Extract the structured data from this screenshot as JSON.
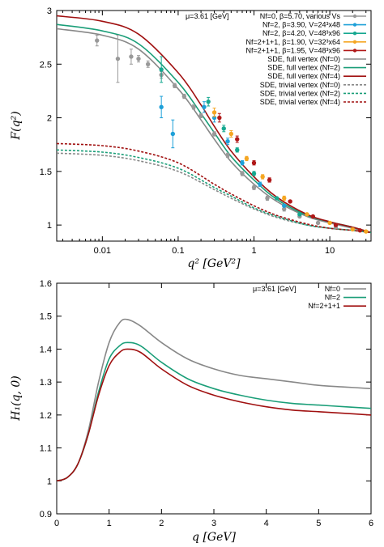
{
  "chart_data": [
    {
      "type": "line",
      "xscale": "log",
      "xlabel": "q² [GeV²]",
      "ylabel": "F(q²)",
      "xlim": [
        0.0025,
        35
      ],
      "ylim": [
        0.85,
        3
      ],
      "xticks": [
        0.01,
        0.1,
        1,
        10
      ],
      "xtick_labels": [
        "0.01",
        "0.1",
        "1",
        "10"
      ],
      "yticks": [
        1,
        1.5,
        2,
        2.5,
        3
      ],
      "ytick_labels": [
        "1",
        "1.5",
        "2",
        "2.5",
        "3"
      ],
      "annotation": "μ=3.61 [GeV]",
      "legend_position": "top-right",
      "lattice": [
        {
          "name": "Nf=0, β=5.70, various Vs",
          "color": "#999999",
          "points": [
            [
              0.0085,
              2.72,
              0.05
            ],
            [
              0.016,
              2.55,
              0.22
            ],
            [
              0.024,
              2.57,
              0.07
            ],
            [
              0.03,
              2.55,
              0.03
            ],
            [
              0.04,
              2.5,
              0.03
            ],
            [
              0.06,
              2.4,
              0.03
            ],
            [
              0.09,
              2.3,
              0.02
            ],
            [
              0.12,
              2.2,
              0.02
            ],
            [
              0.16,
              2.1,
              0.02
            ],
            [
              0.2,
              2.02,
              0.02
            ],
            [
              0.3,
              1.85,
              0.02
            ],
            [
              0.45,
              1.65,
              0.02
            ],
            [
              0.7,
              1.48,
              0.02
            ],
            [
              1.0,
              1.35,
              0.02
            ],
            [
              1.5,
              1.25,
              0.02
            ],
            [
              2.5,
              1.15,
              0.02
            ],
            [
              4.0,
              1.08,
              0.01
            ],
            [
              7.0,
              1.02,
              0.01
            ],
            [
              12.0,
              0.98,
              0.01
            ]
          ]
        },
        {
          "name": "Nf=2, β=3.90, V=24³x48",
          "color": "#1ea0d8",
          "points": [
            [
              0.06,
              2.1,
              0.1
            ],
            [
              0.085,
              1.85,
              0.13
            ],
            [
              0.22,
              2.1,
              0.05
            ],
            [
              0.3,
              2.0,
              0.04
            ],
            [
              0.45,
              1.78,
              0.03
            ],
            [
              0.7,
              1.58,
              0.02
            ],
            [
              1.2,
              1.38,
              0.02
            ],
            [
              2.5,
              1.18,
              0.01
            ]
          ]
        },
        {
          "name": "Nf=2, β=4.20, V=48³x96",
          "color": "#16a890",
          "points": [
            [
              0.06,
              2.45,
              0.12
            ],
            [
              0.25,
              2.15,
              0.04
            ],
            [
              0.4,
              1.9,
              0.03
            ],
            [
              0.6,
              1.7,
              0.02
            ],
            [
              1.0,
              1.48,
              0.02
            ],
            [
              2.0,
              1.25,
              0.01
            ],
            [
              4.0,
              1.1,
              0.01
            ]
          ]
        },
        {
          "name": "Nf=2+1+1, β=1.90, V=32³x64",
          "color": "#f5a623",
          "points": [
            [
              0.3,
              2.05,
              0.04
            ],
            [
              0.5,
              1.85,
              0.03
            ],
            [
              0.8,
              1.62,
              0.02
            ],
            [
              1.3,
              1.45,
              0.02
            ],
            [
              2.5,
              1.25,
              0.02
            ],
            [
              5.0,
              1.1,
              0.01
            ],
            [
              10.0,
              1.02,
              0.01
            ],
            [
              20.0,
              0.96,
              0.01
            ],
            [
              30.0,
              0.94,
              0.01
            ]
          ]
        },
        {
          "name": "Nf=2+1+1, β=1.95, V=48³x96",
          "color": "#b01818",
          "points": [
            [
              0.35,
              2.0,
              0.04
            ],
            [
              0.6,
              1.8,
              0.03
            ],
            [
              1.0,
              1.58,
              0.02
            ],
            [
              1.6,
              1.42,
              0.02
            ],
            [
              3.0,
              1.22,
              0.01
            ],
            [
              6.0,
              1.08,
              0.01
            ],
            [
              12.0,
              1.0,
              0.01
            ],
            [
              25.0,
              0.95,
              0.01
            ]
          ]
        }
      ],
      "series": [
        {
          "name": "SDE, full vertex (Nf=0)",
          "color": "#888888",
          "dash": "",
          "x": [
            0.0025,
            0.01,
            0.03,
            0.1,
            0.2,
            0.3,
            0.5,
            1,
            2,
            5,
            10,
            20,
            35
          ],
          "y": [
            2.83,
            2.77,
            2.64,
            2.27,
            1.98,
            1.8,
            1.59,
            1.38,
            1.22,
            1.08,
            1.02,
            0.97,
            0.93
          ]
        },
        {
          "name": "SDE, full vertex (Nf=2)",
          "color": "#1a9e78",
          "dash": "",
          "x": [
            0.0025,
            0.01,
            0.03,
            0.1,
            0.2,
            0.3,
            0.5,
            1,
            2,
            5,
            10,
            20,
            35
          ],
          "y": [
            2.87,
            2.81,
            2.69,
            2.33,
            2.04,
            1.86,
            1.64,
            1.42,
            1.24,
            1.09,
            1.03,
            0.98,
            0.93
          ]
        },
        {
          "name": "SDE, full vertex (Nf=4)",
          "color": "#a01010",
          "dash": "",
          "x": [
            0.0025,
            0.01,
            0.03,
            0.1,
            0.2,
            0.3,
            0.5,
            1,
            2,
            5,
            10,
            20,
            35
          ],
          "y": [
            2.95,
            2.9,
            2.78,
            2.42,
            2.12,
            1.92,
            1.69,
            1.45,
            1.26,
            1.1,
            1.03,
            0.98,
            0.93
          ]
        },
        {
          "name": "SDE, trivial vertex (Nf=0)",
          "color": "#888888",
          "dash": "3,2",
          "x": [
            0.0025,
            0.01,
            0.03,
            0.1,
            0.3,
            0.5,
            1,
            2,
            5,
            10,
            20,
            35
          ],
          "y": [
            1.67,
            1.65,
            1.6,
            1.5,
            1.33,
            1.25,
            1.15,
            1.07,
            1.0,
            0.97,
            0.95,
            0.93
          ]
        },
        {
          "name": "SDE, trivial vertex (Nf=2)",
          "color": "#1a9e78",
          "dash": "3,2",
          "x": [
            0.0025,
            0.01,
            0.03,
            0.1,
            0.3,
            0.5,
            1,
            2,
            5,
            10,
            20,
            35
          ],
          "y": [
            1.7,
            1.68,
            1.63,
            1.53,
            1.35,
            1.27,
            1.16,
            1.08,
            1.0,
            0.97,
            0.95,
            0.93
          ]
        },
        {
          "name": "SDE, trivial vertex (Nf=4)",
          "color": "#a01010",
          "dash": "3,2",
          "x": [
            0.0025,
            0.01,
            0.03,
            0.1,
            0.3,
            0.5,
            1,
            2,
            5,
            10,
            20,
            35
          ],
          "y": [
            1.76,
            1.74,
            1.69,
            1.58,
            1.38,
            1.29,
            1.18,
            1.09,
            1.01,
            0.97,
            0.95,
            0.93
          ]
        }
      ]
    },
    {
      "type": "line",
      "xscale": "linear",
      "xlabel": "q [GeV]",
      "ylabel": "H₁(q, 0)",
      "xlim": [
        0,
        6
      ],
      "ylim": [
        0.9,
        1.6
      ],
      "xticks": [
        0,
        1,
        2,
        3,
        4,
        5,
        6
      ],
      "xtick_labels": [
        "0",
        "1",
        "2",
        "3",
        "4",
        "5",
        "6"
      ],
      "yticks": [
        0.9,
        1.0,
        1.1,
        1.2,
        1.3,
        1.4,
        1.5,
        1.6
      ],
      "ytick_labels": [
        "0.9",
        "1",
        "1.1",
        "1.2",
        "1.3",
        "1.4",
        "1.5",
        "1.6"
      ],
      "annotation": "μ=3.61 [GeV]",
      "legend_position": "top-right",
      "series": [
        {
          "name": "Nf=0",
          "color": "#888888",
          "x": [
            0,
            0.2,
            0.4,
            0.6,
            0.8,
            1.0,
            1.2,
            1.35,
            1.6,
            2.0,
            2.5,
            3.0,
            3.5,
            4.0,
            4.5,
            5.0,
            5.5,
            6.0
          ],
          "y": [
            1.0,
            1.01,
            1.05,
            1.15,
            1.3,
            1.42,
            1.48,
            1.49,
            1.47,
            1.42,
            1.37,
            1.34,
            1.32,
            1.31,
            1.3,
            1.29,
            1.285,
            1.28
          ]
        },
        {
          "name": "Nf=2",
          "color": "#1a9e78",
          "x": [
            0,
            0.2,
            0.4,
            0.6,
            0.8,
            1.0,
            1.2,
            1.35,
            1.6,
            2.0,
            2.5,
            3.0,
            3.5,
            4.0,
            4.5,
            5.0,
            5.5,
            6.0
          ],
          "y": [
            1.0,
            1.01,
            1.05,
            1.14,
            1.27,
            1.37,
            1.41,
            1.42,
            1.41,
            1.36,
            1.31,
            1.28,
            1.26,
            1.245,
            1.235,
            1.23,
            1.225,
            1.22
          ]
        },
        {
          "name": "Nf=2+1+1",
          "color": "#a01010",
          "x": [
            0,
            0.2,
            0.4,
            0.6,
            0.8,
            1.0,
            1.2,
            1.35,
            1.6,
            2.0,
            2.5,
            3.0,
            3.5,
            4.0,
            4.5,
            5.0,
            5.5,
            6.0
          ],
          "y": [
            1.0,
            1.01,
            1.05,
            1.14,
            1.26,
            1.35,
            1.39,
            1.4,
            1.39,
            1.34,
            1.29,
            1.26,
            1.24,
            1.225,
            1.215,
            1.21,
            1.205,
            1.2
          ]
        }
      ]
    }
  ]
}
